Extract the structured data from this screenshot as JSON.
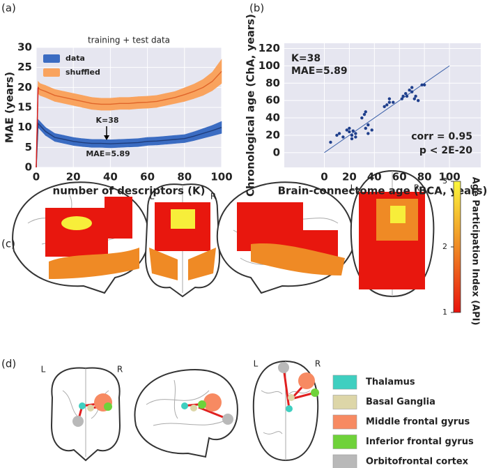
{
  "chart_data": [
    {
      "type": "line",
      "panel": "(a)",
      "title": "training + test data",
      "xlabel": "number of descriptors (K)",
      "ylabel": "MAE (years)",
      "x": [
        0,
        1,
        2,
        5,
        10,
        15,
        20,
        25,
        30,
        35,
        40,
        45,
        50,
        55,
        60,
        65,
        70,
        75,
        80,
        85,
        90,
        95,
        100
      ],
      "series": [
        {
          "name": "shuffled",
          "color": "#e0652a",
          "band_color": "#f9a35e",
          "values": [
            0,
            20,
            19.5,
            19,
            18,
            17.5,
            17,
            16.5,
            16,
            15.8,
            15.8,
            16,
            16,
            16.2,
            16.3,
            16.5,
            17,
            17.5,
            18.2,
            19,
            20,
            21.5,
            24
          ],
          "lower": [
            0,
            18.5,
            18,
            17.5,
            16.5,
            16,
            15.5,
            15,
            14.5,
            14.3,
            14.3,
            14.5,
            14.5,
            14.7,
            14.8,
            15,
            15.5,
            16,
            16.5,
            17.2,
            18,
            19.2,
            21
          ],
          "upper": [
            0,
            21.5,
            21,
            20.5,
            19.5,
            19,
            18.5,
            18,
            17.5,
            17.3,
            17.3,
            17.5,
            17.5,
            17.7,
            17.8,
            18,
            18.5,
            19,
            19.9,
            20.8,
            22,
            23.8,
            27
          ]
        },
        {
          "name": "data",
          "color": "#1e3c7a",
          "band_color": "#3b6cc2",
          "values": [
            0,
            11,
            10.5,
            9,
            7.5,
            7,
            6.5,
            6.2,
            6,
            6,
            5.9,
            6,
            6.1,
            6.2,
            6.5,
            6.6,
            6.8,
            7,
            7.2,
            7.8,
            8.5,
            9.2,
            10
          ],
          "lower": [
            0,
            10,
            9.5,
            8,
            6.5,
            6,
            5.5,
            5.2,
            5,
            5,
            4.9,
            5,
            5.1,
            5.2,
            5.5,
            5.6,
            5.8,
            6,
            6.2,
            6.7,
            7.3,
            7.9,
            8.5
          ],
          "upper": [
            0,
            12,
            11.5,
            10,
            8.5,
            8,
            7.5,
            7.2,
            7,
            7,
            6.9,
            7,
            7.1,
            7.2,
            7.5,
            7.6,
            7.8,
            8,
            8.2,
            8.9,
            9.7,
            10.5,
            11.5
          ]
        }
      ],
      "annotations": [
        "K=38",
        "MAE=5.89"
      ],
      "xlim": [
        0,
        100
      ],
      "xticks": [
        0,
        20,
        40,
        60,
        80,
        100
      ],
      "ylim": [
        0,
        30
      ],
      "yticks": [
        0,
        5,
        10,
        15,
        20,
        25,
        30
      ],
      "grid": true
    },
    {
      "type": "scatter",
      "panel": "(b)",
      "xlabel": "Brain-connectome age (BCA, years)",
      "ylabel": "Chronological age (ChA, years)",
      "color": "#1f3f8c",
      "x": [
        5,
        10,
        12,
        15,
        18,
        20,
        20,
        22,
        22,
        23,
        25,
        25,
        30,
        32,
        33,
        33,
        35,
        35,
        38,
        48,
        50,
        52,
        52,
        55,
        62,
        63,
        65,
        66,
        68,
        70,
        70,
        72,
        73,
        75,
        78,
        80
      ],
      "values": [
        12,
        20,
        22,
        18,
        26,
        24,
        28,
        16,
        20,
        25,
        22,
        18,
        40,
        44,
        47,
        28,
        32,
        22,
        26,
        53,
        55,
        62,
        58,
        58,
        62,
        65,
        68,
        65,
        72,
        75,
        70,
        62,
        65,
        60,
        78,
        78
      ],
      "annotations": [
        "K=38",
        "MAE=5.89",
        "corr = 0.95",
        "p < 2E-20"
      ],
      "xlim": [
        -32,
        125
      ],
      "xticks": [
        0,
        20,
        40,
        60,
        80,
        100
      ],
      "ylim": [
        -17,
        126
      ],
      "yticks": [
        0,
        20,
        40,
        60,
        80,
        100,
        120
      ],
      "grid": true
    }
  ],
  "brain_maps": {
    "panel": "(c)",
    "view_labels": [
      "L",
      "R",
      "L",
      "R"
    ],
    "colorbar": {
      "label": "Age Participation Index (API)",
      "lim": [
        1,
        3
      ],
      "ticks": [
        1,
        2,
        3
      ]
    }
  },
  "network": {
    "panel": "(d)",
    "view_labels": [
      "L",
      "R",
      "L",
      "R"
    ],
    "legend": [
      {
        "name": "Thalamus",
        "color": "#3fcfc0"
      },
      {
        "name": "Basal Ganglia",
        "color": "#ddd6a8"
      },
      {
        "name": "Middle frontal gyrus",
        "color": "#f78a62"
      },
      {
        "name": "Inferior frontal gyrus",
        "color": "#6fd23a"
      },
      {
        "name": "Orbitofrontal cortex",
        "color": "#b9b9b9"
      }
    ]
  }
}
